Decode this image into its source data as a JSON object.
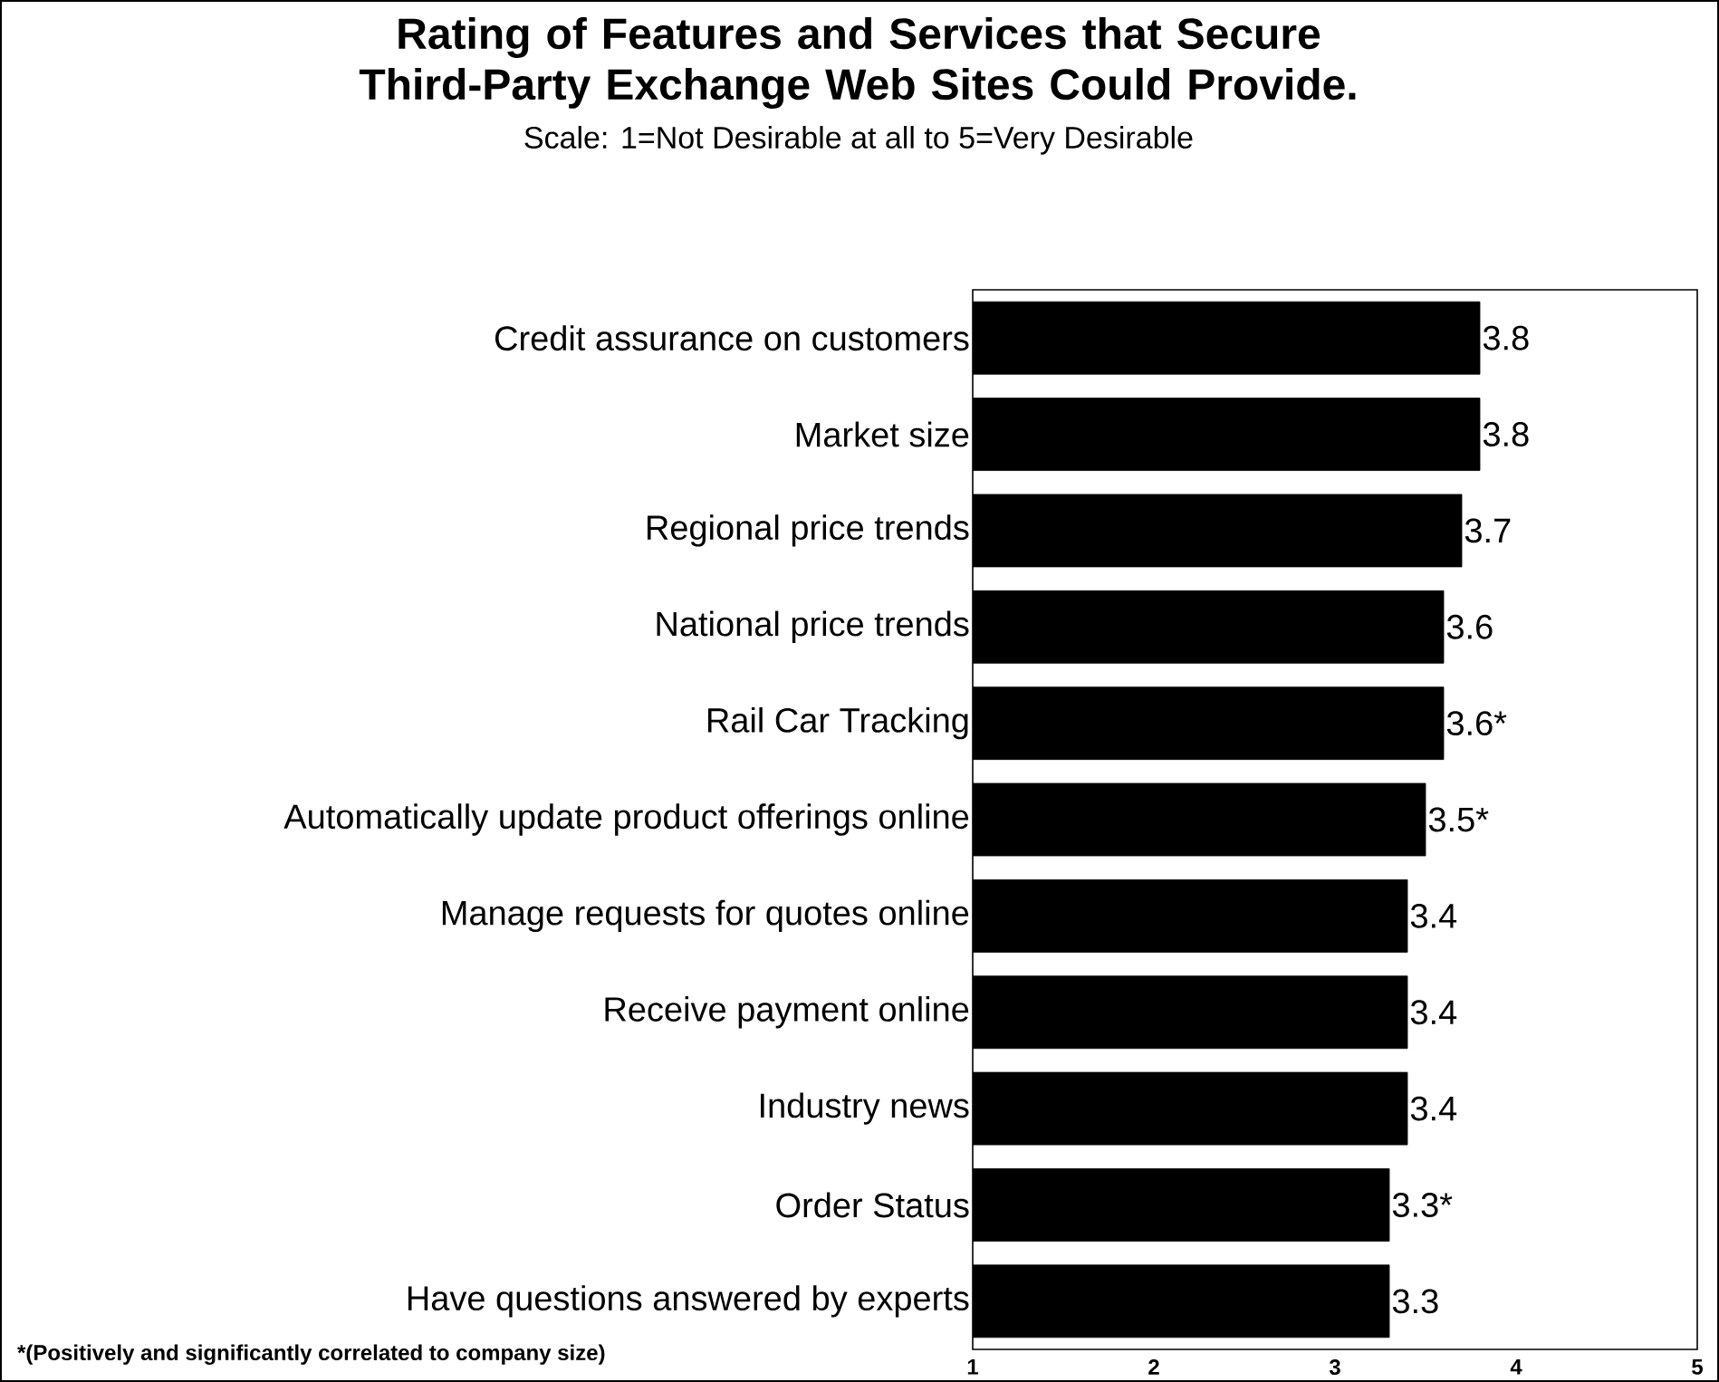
{
  "chart_data": {
    "type": "bar",
    "orientation": "horizontal",
    "title": "Rating of Features and Services that Secure Third-Party Exchange Web Sites Could Provide.",
    "subtitle": "Scale: 1=Not Desirable at all to 5=Very Desirable",
    "categories": [
      "Credit assurance on customers",
      "Market size",
      "Regional price trends",
      "National price trends",
      "Rail Car Tracking",
      "Automatically update product offerings online",
      "Manage requests for quotes online",
      "Receive payment online",
      "Industry news",
      "Order Status",
      "Have questions answered by experts"
    ],
    "values": [
      3.8,
      3.8,
      3.7,
      3.6,
      3.6,
      3.5,
      3.4,
      3.4,
      3.4,
      3.3,
      3.3
    ],
    "value_labels": [
      "3.8",
      "3.8",
      "3.7",
      "3.6",
      "3.6*",
      "3.5*",
      "3.4",
      "3.4",
      "3.4",
      "3.3*",
      "3.3"
    ],
    "color": "#000000",
    "xlim": [
      1,
      5
    ],
    "xticks": [
      1,
      2,
      3,
      4,
      5
    ],
    "annotations": [
      "*(Positively and significantly correlated to company size)"
    ]
  }
}
